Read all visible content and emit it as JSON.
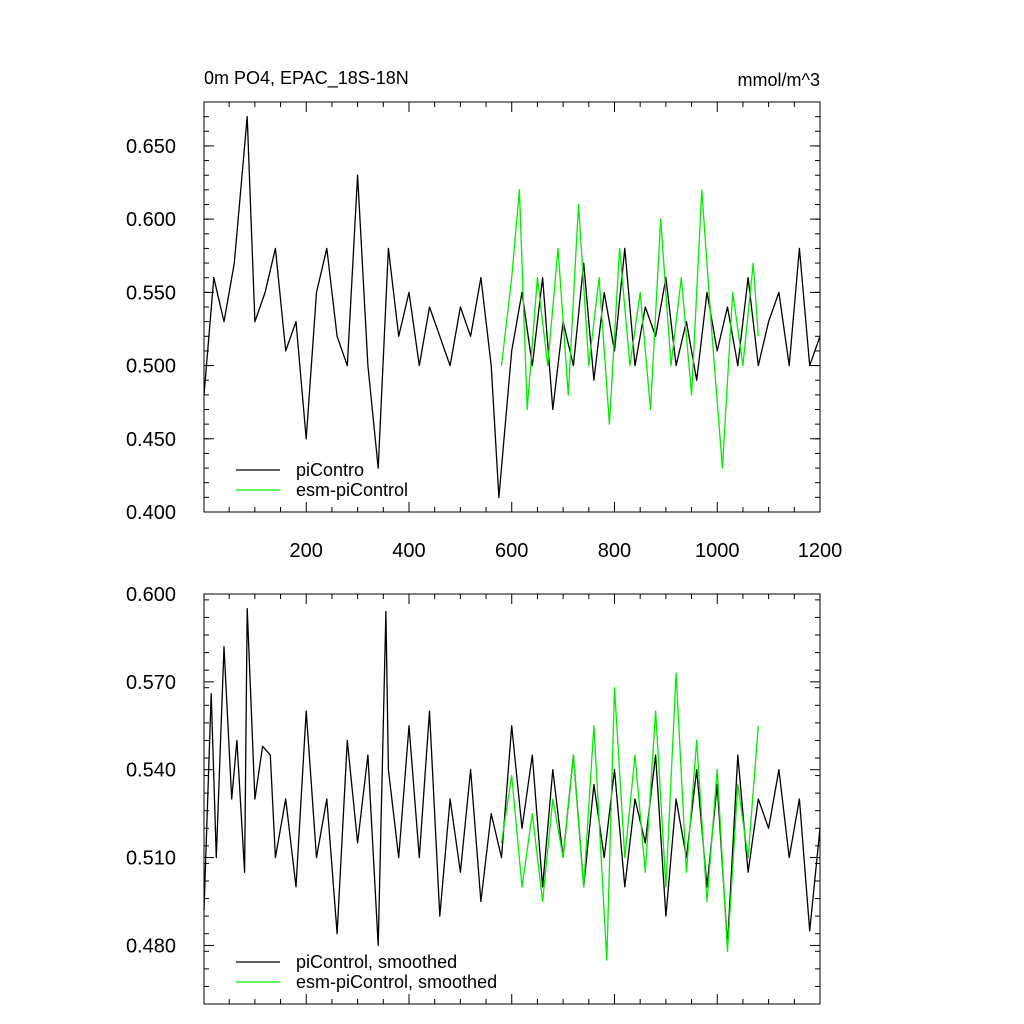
{
  "chart_data": [
    {
      "type": "line",
      "title": "0m PO4, EPAC_18S-18N",
      "units": "mmol/m^3",
      "xlabel": "",
      "ylabel": "",
      "xlim": [
        1,
        1200
      ],
      "ylim": [
        0.4,
        0.68
      ],
      "xticks": [
        200,
        400,
        600,
        800,
        1000,
        1200
      ],
      "xtick_labels": [
        "200",
        "400",
        "600",
        "800",
        "1000",
        "1200"
      ],
      "yticks": [
        0.4,
        0.45,
        0.5,
        0.55,
        0.6,
        0.65
      ],
      "ytick_labels": [
        "0.400",
        "0.450",
        "0.500",
        "0.550",
        "0.600",
        "0.650"
      ],
      "legend_position": "bottom-left",
      "series": [
        {
          "name": "piContro",
          "color": "#000000",
          "x": [
            1,
            20,
            40,
            60,
            85,
            100,
            120,
            140,
            160,
            180,
            200,
            220,
            240,
            260,
            280,
            300,
            320,
            340,
            360,
            380,
            400,
            420,
            440,
            460,
            480,
            500,
            520,
            540,
            560,
            575,
            600,
            620,
            640,
            660,
            680,
            700,
            720,
            740,
            760,
            780,
            800,
            820,
            840,
            860,
            880,
            900,
            920,
            940,
            960,
            980,
            1000,
            1020,
            1040,
            1060,
            1080,
            1100,
            1120,
            1140,
            1160,
            1180,
            1200
          ],
          "y": [
            0.48,
            0.56,
            0.53,
            0.57,
            0.67,
            0.53,
            0.55,
            0.58,
            0.51,
            0.53,
            0.45,
            0.55,
            0.58,
            0.52,
            0.5,
            0.63,
            0.5,
            0.43,
            0.58,
            0.52,
            0.55,
            0.5,
            0.54,
            0.52,
            0.5,
            0.54,
            0.52,
            0.56,
            0.5,
            0.41,
            0.51,
            0.55,
            0.5,
            0.56,
            0.47,
            0.53,
            0.5,
            0.57,
            0.49,
            0.55,
            0.51,
            0.58,
            0.5,
            0.54,
            0.52,
            0.56,
            0.5,
            0.53,
            0.49,
            0.55,
            0.51,
            0.54,
            0.5,
            0.56,
            0.5,
            0.53,
            0.55,
            0.5,
            0.58,
            0.5,
            0.52
          ]
        },
        {
          "name": "esm-piControl",
          "color": "#00ee00",
          "x": [
            580,
            600,
            615,
            630,
            650,
            670,
            690,
            710,
            730,
            750,
            770,
            790,
            810,
            830,
            850,
            870,
            890,
            910,
            930,
            950,
            970,
            990,
            1010,
            1030,
            1050,
            1070,
            1080
          ],
          "y": [
            0.5,
            0.56,
            0.62,
            0.47,
            0.56,
            0.5,
            0.58,
            0.48,
            0.61,
            0.5,
            0.56,
            0.46,
            0.58,
            0.5,
            0.55,
            0.47,
            0.6,
            0.5,
            0.56,
            0.48,
            0.62,
            0.52,
            0.43,
            0.55,
            0.5,
            0.57,
            0.52
          ]
        }
      ]
    },
    {
      "type": "line",
      "title": "",
      "xlabel": "",
      "ylabel": "",
      "xlim": [
        1,
        1200
      ],
      "ylim": [
        0.46,
        0.6
      ],
      "xticks": [
        200,
        400,
        600,
        800,
        1000,
        1200
      ],
      "yticks": [
        0.48,
        0.51,
        0.54,
        0.57,
        0.6
      ],
      "ytick_labels": [
        "0.480",
        "0.510",
        "0.540",
        "0.570",
        "0.600"
      ],
      "legend_position": "bottom-left",
      "series": [
        {
          "name": "piControl, smoothed",
          "color": "#000000",
          "x": [
            1,
            15,
            25,
            40,
            55,
            65,
            80,
            85,
            100,
            115,
            130,
            140,
            160,
            180,
            200,
            220,
            240,
            260,
            280,
            300,
            320,
            340,
            355,
            360,
            380,
            400,
            420,
            440,
            460,
            480,
            500,
            520,
            540,
            560,
            580,
            600,
            620,
            640,
            660,
            680,
            700,
            720,
            740,
            760,
            780,
            800,
            820,
            840,
            860,
            880,
            900,
            920,
            940,
            960,
            980,
            1000,
            1020,
            1040,
            1060,
            1080,
            1100,
            1120,
            1140,
            1160,
            1180,
            1200
          ],
          "y": [
            0.492,
            0.566,
            0.51,
            0.582,
            0.53,
            0.55,
            0.505,
            0.595,
            0.53,
            0.548,
            0.545,
            0.51,
            0.53,
            0.5,
            0.56,
            0.51,
            0.53,
            0.484,
            0.55,
            0.515,
            0.545,
            0.48,
            0.594,
            0.54,
            0.51,
            0.555,
            0.51,
            0.56,
            0.49,
            0.53,
            0.505,
            0.54,
            0.495,
            0.525,
            0.51,
            0.555,
            0.52,
            0.545,
            0.5,
            0.54,
            0.51,
            0.545,
            0.5,
            0.535,
            0.51,
            0.54,
            0.5,
            0.53,
            0.515,
            0.545,
            0.49,
            0.53,
            0.51,
            0.54,
            0.5,
            0.535,
            0.48,
            0.545,
            0.505,
            0.53,
            0.52,
            0.54,
            0.51,
            0.53,
            0.485,
            0.52
          ]
        },
        {
          "name": "esm-piControl, smoothed",
          "color": "#00ee00",
          "x": [
            580,
            600,
            620,
            640,
            660,
            680,
            700,
            720,
            740,
            760,
            785,
            800,
            820,
            840,
            860,
            880,
            900,
            920,
            940,
            960,
            980,
            1000,
            1020,
            1040,
            1060,
            1080
          ],
          "y": [
            0.515,
            0.538,
            0.5,
            0.525,
            0.495,
            0.53,
            0.51,
            0.545,
            0.5,
            0.555,
            0.475,
            0.568,
            0.51,
            0.545,
            0.505,
            0.56,
            0.5,
            0.573,
            0.505,
            0.55,
            0.495,
            0.54,
            0.478,
            0.535,
            0.51,
            0.555
          ]
        }
      ]
    }
  ]
}
